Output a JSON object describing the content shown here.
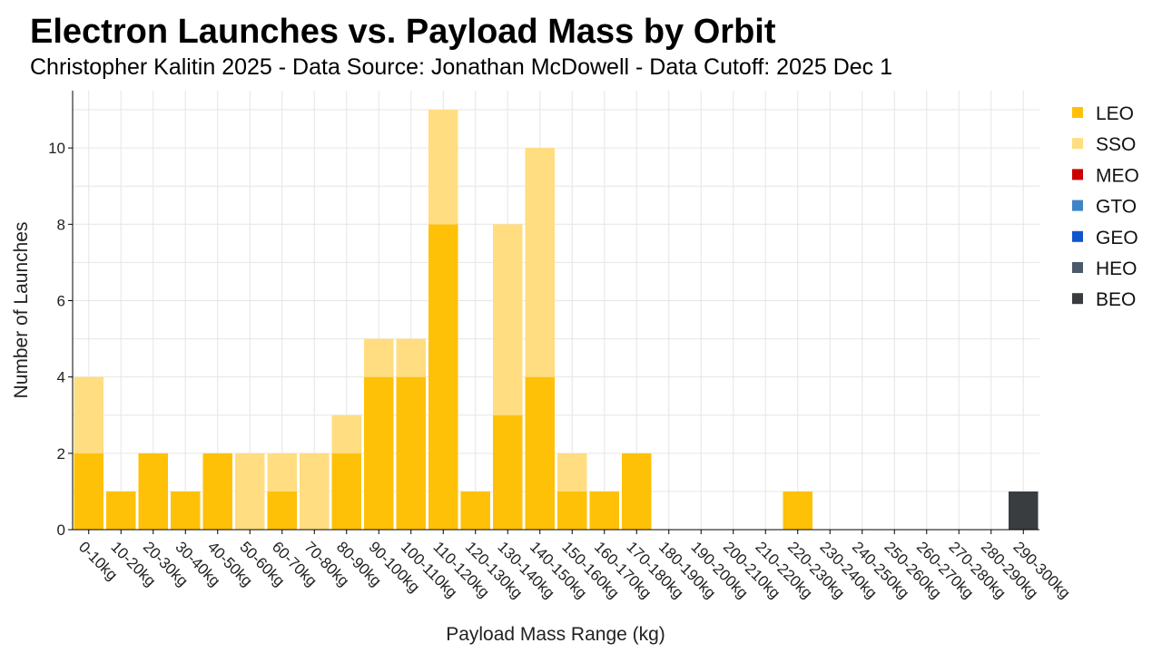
{
  "chart_data": {
    "type": "bar",
    "stacked": true,
    "title": "Electron Launches vs. Payload Mass by Orbit",
    "subtitle": "Christopher Kalitin 2025 - Data Source: Jonathan McDowell - Data Cutoff: 2025 Dec 1",
    "xlabel": "Payload Mass Range (kg)",
    "ylabel": "Number of Launches",
    "ylim": [
      0,
      11.5
    ],
    "yticks": [
      0,
      2,
      4,
      6,
      8,
      10
    ],
    "grid": true,
    "legend_position": "right",
    "categories": [
      "0-10kg",
      "10-20kg",
      "20-30kg",
      "30-40kg",
      "40-50kg",
      "50-60kg",
      "60-70kg",
      "70-80kg",
      "80-90kg",
      "90-100kg",
      "100-110kg",
      "110-120kg",
      "120-130kg",
      "130-140kg",
      "140-150kg",
      "150-160kg",
      "160-170kg",
      "170-180kg",
      "180-190kg",
      "190-200kg",
      "200-210kg",
      "210-220kg",
      "220-230kg",
      "230-240kg",
      "240-250kg",
      "250-260kg",
      "260-270kg",
      "270-280kg",
      "280-290kg",
      "290-300kg"
    ],
    "series": [
      {
        "name": "LEO",
        "color": "#FFC107",
        "values": [
          2,
          1,
          2,
          1,
          2,
          0,
          1,
          0,
          2,
          4,
          4,
          8,
          1,
          3,
          4,
          1,
          1,
          2,
          0,
          0,
          0,
          0,
          1,
          0,
          0,
          0,
          0,
          0,
          0,
          0
        ]
      },
      {
        "name": "SSO",
        "color": "#FFDD80",
        "values": [
          2,
          0,
          0,
          0,
          0,
          2,
          1,
          2,
          1,
          1,
          1,
          3,
          0,
          5,
          6,
          1,
          0,
          0,
          0,
          0,
          0,
          0,
          0,
          0,
          0,
          0,
          0,
          0,
          0,
          0
        ]
      },
      {
        "name": "MEO",
        "color": "#CC0000",
        "values": [
          0,
          0,
          0,
          0,
          0,
          0,
          0,
          0,
          0,
          0,
          0,
          0,
          0,
          0,
          0,
          0,
          0,
          0,
          0,
          0,
          0,
          0,
          0,
          0,
          0,
          0,
          0,
          0,
          0,
          0
        ]
      },
      {
        "name": "GTO",
        "color": "#3D85C6",
        "values": [
          0,
          0,
          0,
          0,
          0,
          0,
          0,
          0,
          0,
          0,
          0,
          0,
          0,
          0,
          0,
          0,
          0,
          0,
          0,
          0,
          0,
          0,
          0,
          0,
          0,
          0,
          0,
          0,
          0,
          0
        ]
      },
      {
        "name": "GEO",
        "color": "#1155CC",
        "values": [
          0,
          0,
          0,
          0,
          0,
          0,
          0,
          0,
          0,
          0,
          0,
          0,
          0,
          0,
          0,
          0,
          0,
          0,
          0,
          0,
          0,
          0,
          0,
          0,
          0,
          0,
          0,
          0,
          0,
          0
        ]
      },
      {
        "name": "HEO",
        "color": "#4A5A6A",
        "values": [
          0,
          0,
          0,
          0,
          0,
          0,
          0,
          0,
          0,
          0,
          0,
          0,
          0,
          0,
          0,
          0,
          0,
          0,
          0,
          0,
          0,
          0,
          0,
          0,
          0,
          0,
          0,
          0,
          0,
          0
        ]
      },
      {
        "name": "BEO",
        "color": "#3A3D40",
        "values": [
          0,
          0,
          0,
          0,
          0,
          0,
          0,
          0,
          0,
          0,
          0,
          0,
          0,
          0,
          0,
          0,
          0,
          0,
          0,
          0,
          0,
          0,
          0,
          0,
          0,
          0,
          0,
          0,
          0,
          1
        ]
      }
    ]
  }
}
